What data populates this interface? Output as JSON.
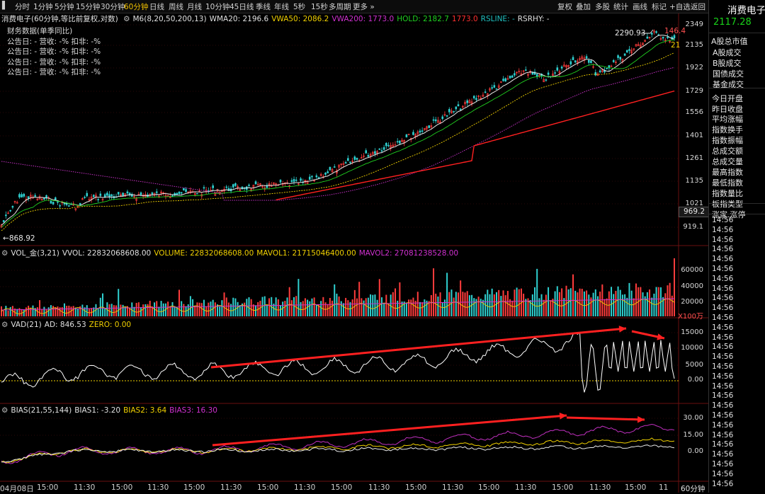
{
  "toolbar": {
    "periods": [
      "分时",
      "1分钟",
      "5分钟",
      "15分钟",
      "30分钟",
      "60分钟",
      "日线",
      "周线",
      "月线",
      "10分钟",
      "45日线",
      "季线",
      "年线",
      "5秒",
      "15秒",
      "多周期",
      "更多"
    ],
    "active_period": "60分钟",
    "right": [
      "复权",
      "叠加",
      "多股",
      "统计",
      "画线",
      "标记",
      "+自选",
      "返回"
    ]
  },
  "main": {
    "title": "消费电子(60分钟,等比前复权,对数)",
    "indicators": [
      {
        "label": "M6(8,20,50,200,13)",
        "color": "#e0e0e0"
      },
      {
        "label": "WMA20: 2196.6",
        "color": "#e0e0e0"
      },
      {
        "label": "VWA50: 2086.2",
        "color": "#f0d000"
      },
      {
        "label": "VWA200: 1773.0",
        "color": "#d030d0"
      },
      {
        "label": "HOLD: 2182.7",
        "color": "#20d020"
      },
      {
        "label": "1773.0",
        "color": "#ff3030"
      },
      {
        "label": "RSLINE: -",
        "color": "#20c0c0"
      },
      {
        "label": "RSRHY: -",
        "color": "#e0e0e0"
      }
    ],
    "fin_title": "财务数据(单季同比)",
    "fin_rows": [
      "公告日: -   营收: -%   扣非: -%",
      "公告日: -   营收: -%   扣非: -%",
      "公告日: -   营收: -%   扣非: -%",
      "公告日: -   营收: -%   扣非: -%"
    ],
    "axis": [
      "2349",
      "2135",
      "1922",
      "1729",
      "1556",
      "1401",
      "1261",
      "1135",
      "1021",
      "919.1"
    ],
    "high_label": "2290.93",
    "low_label": "868.92",
    "last_label": "146.4",
    "tag_21": "21",
    "price_tag": "969.2"
  },
  "vol": {
    "indicators": [
      {
        "label": "VOL_金(3,21)",
        "color": "#e0e0e0"
      },
      {
        "label": "VVOL: 22832068608.00",
        "color": "#e0e0e0"
      },
      {
        "label": "VOLUME: 22832068608.00",
        "color": "#f0d000"
      },
      {
        "label": "MAVOL1: 21715046400.00",
        "color": "#f0d000"
      },
      {
        "label": "MAVOL2: 27081238528.00",
        "color": "#d030d0"
      }
    ],
    "axis": [
      "60000",
      "40000",
      "20000"
    ],
    "unit": "X100万"
  },
  "vad": {
    "indicators": [
      {
        "label": "VAD(21)",
        "color": "#e0e0e0"
      },
      {
        "label": "AD: 846.53",
        "color": "#e0e0e0"
      },
      {
        "label": "ZERO: 0.00",
        "color": "#f0d000"
      }
    ],
    "axis": [
      "15000",
      "10000",
      "5000",
      "0.00"
    ]
  },
  "bias": {
    "indicators": [
      {
        "label": "BIAS(21,55,144)",
        "color": "#e0e0e0"
      },
      {
        "label": "BIAS1: -3.20",
        "color": "#e0e0e0"
      },
      {
        "label": "BIAS2: 3.64",
        "color": "#f0d000"
      },
      {
        "label": "BIAS3: 16.30",
        "color": "#d030d0"
      }
    ],
    "axis": [
      "30.00",
      "15.00",
      "0.00"
    ]
  },
  "xaxis": [
    "04月08日",
    "15:00",
    "11:30",
    "15:00",
    "11:30",
    "15:00",
    "11:30",
    "15:00",
    "11:30",
    "15:00",
    "11:30",
    "15:00",
    "11:30",
    "15:00",
    "11:30",
    "15:00",
    "11:30",
    "15:00",
    "11"
  ],
  "period_label": "60分钟",
  "right_panel": {
    "title": "消费电子",
    "price": "2117.28",
    "head": "A股总市值",
    "items": [
      "A股成交",
      "B股成交",
      "国债成交",
      "基金成交",
      "今日开盘",
      "昨日收盘",
      "平均涨幅",
      "指数换手",
      "指数振幅",
      "总成交额",
      "总成交量",
      "最高指数",
      "最低指数",
      "指数量比",
      "板指类型",
      "涨家.涨停"
    ],
    "times": [
      "14:56",
      "14:56",
      "14:56",
      "14:56",
      "14:56",
      "14:56",
      "14:56",
      "14:56",
      "14:56",
      "14:56",
      "14:56",
      "14:56",
      "14:56",
      "14:56",
      "14:56",
      "14:56",
      "14:56",
      "14:56",
      "14:56",
      "14:56",
      "14:56",
      "14:56",
      "14:56",
      "14:56",
      "14:56",
      "14:56",
      "14:56",
      "14:56",
      "14:57",
      "14:57",
      "14:57",
      "14:57",
      "14:57",
      "14:57",
      "14:57",
      "14:57",
      "14:57"
    ]
  }
}
